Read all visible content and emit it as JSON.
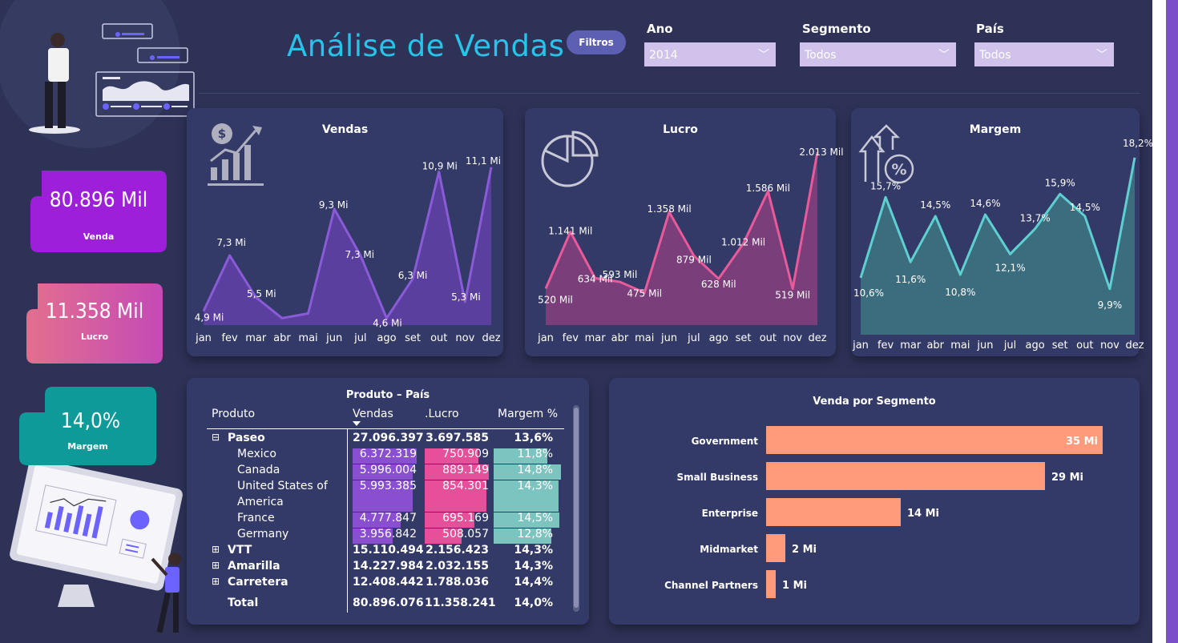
{
  "header": {
    "title": "Análise de Vendas",
    "filters_button": "Filtros"
  },
  "filters": [
    {
      "label": "Ano",
      "value": "2014"
    },
    {
      "label": "Segmento",
      "value": "Todos"
    },
    {
      "label": "País",
      "value": "Todos"
    }
  ],
  "kpis": {
    "venda": {
      "value": "80.896 Mil",
      "label": "Venda"
    },
    "lucro": {
      "value": "11.358 Mil",
      "label": "Lucro"
    },
    "margem": {
      "value": "14,0%",
      "label": "Margem"
    }
  },
  "colors": {
    "background": "#2e3257",
    "card": "#343a68",
    "vendas_line": "#8a5bd6",
    "lucro_line": "#e85a9a",
    "margem_line": "#5ed0d0",
    "bar": "#ff9b7a",
    "title": "#28c3e8"
  },
  "chart_data": [
    {
      "type": "area",
      "title": "Vendas",
      "categories": [
        "jan",
        "fev",
        "mar",
        "abr",
        "mai",
        "jun",
        "jul",
        "ago",
        "set",
        "out",
        "nov",
        "dez"
      ],
      "values": [
        4.9,
        7.3,
        5.5,
        4.6,
        4.8,
        9.3,
        7.3,
        4.6,
        6.3,
        10.9,
        5.3,
        11.1
      ],
      "labels": [
        "4,9 Mi",
        "7,3 Mi",
        "5,5 Mi",
        "",
        "",
        "9,3 Mi",
        "7,3 Mi",
        "4,6 Mi",
        "6,3 Mi",
        "10,9 Mi",
        "5,3 Mi",
        "11,1 Mi"
      ],
      "ylim": [
        4.3,
        11.3
      ]
    },
    {
      "type": "area",
      "title": "Lucro",
      "categories": [
        "jan",
        "fev",
        "mar",
        "abr",
        "mai",
        "jun",
        "jul",
        "ago",
        "set",
        "out",
        "nov",
        "dez"
      ],
      "values": [
        520,
        1141,
        634,
        593,
        475,
        1358,
        879,
        628,
        1012,
        1586,
        519,
        2013
      ],
      "labels": [
        "520 Mil",
        "1.141 Mil",
        "634 Mil",
        "593 Mil",
        "475 Mil",
        "1.358 Mil",
        "879 Mil",
        "628 Mil",
        "1.012 Mil",
        "1.586 Mil",
        "519 Mil",
        "2.013 Mil"
      ],
      "ylim": [
        120,
        2040
      ]
    },
    {
      "type": "area",
      "title": "Margem",
      "categories": [
        "jan",
        "fev",
        "mar",
        "abr",
        "mai",
        "jun",
        "jul",
        "ago",
        "set",
        "out",
        "nov",
        "dez"
      ],
      "values": [
        10.6,
        15.7,
        11.6,
        14.5,
        10.8,
        14.6,
        12.1,
        13.7,
        15.9,
        14.5,
        9.9,
        18.2
      ],
      "labels": [
        "10,6%",
        "15,7%",
        "11,6%",
        "14,5%",
        "10,8%",
        "14,6%",
        "12,1%",
        "13,7%",
        "15,9%",
        "14,5%",
        "9,9%",
        "18,2%"
      ],
      "ylim": [
        7.0,
        18.6
      ]
    },
    {
      "type": "bar",
      "title": "Venda por Segmento",
      "categories": [
        "Government",
        "Small Business",
        "Enterprise",
        "Midmarket",
        "Channel Partners"
      ],
      "values": [
        35,
        29,
        14,
        2,
        1
      ],
      "labels": [
        "35 Mi",
        "29 Mi",
        "14 Mi",
        "2 Mi",
        "1 Mi"
      ],
      "xlim": [
        0,
        35
      ]
    }
  ],
  "matrix": {
    "title": "Produto  – País",
    "headers": [
      "Produto",
      "Vendas",
      ".Lucro",
      "Margem %"
    ],
    "rows": [
      {
        "name": "Paseo",
        "level": 0,
        "expand": "⊟",
        "vendas": "27.096.397",
        "lucro": "3.697.585",
        "margem": "13,6%"
      },
      {
        "name": "Mexico",
        "level": 1,
        "vendas": "6.372.319",
        "lucro": "750.909",
        "margem": "11,8%",
        "vendas_frac": 1.0,
        "lucro_frac": 0.84,
        "margem_frac": 0.8
      },
      {
        "name": "Canada",
        "level": 1,
        "vendas": "5.996.004",
        "lucro": "889.149",
        "margem": "14,8%",
        "vendas_frac": 0.94,
        "lucro_frac": 1.0,
        "margem_frac": 1.0
      },
      {
        "name": "United States of",
        "name2": "America",
        "level": 1,
        "vendas": "5.993.385",
        "lucro": "854.301",
        "margem": "14,3%",
        "vendas_frac": 0.94,
        "lucro_frac": 0.96,
        "margem_frac": 0.97
      },
      {
        "name": "France",
        "level": 1,
        "vendas": "4.777.847",
        "lucro": "695.169",
        "margem": "14,5%",
        "vendas_frac": 0.75,
        "lucro_frac": 0.78,
        "margem_frac": 0.98
      },
      {
        "name": "Germany",
        "level": 1,
        "vendas": "3.956.842",
        "lucro": "508.057",
        "margem": "12,8%",
        "vendas_frac": 0.62,
        "lucro_frac": 0.57,
        "margem_frac": 0.86
      },
      {
        "name": "VTT",
        "level": 0,
        "expand": "⊞",
        "vendas": "15.110.494",
        "lucro": "2.156.423",
        "margem": "14,3%"
      },
      {
        "name": "Amarilla",
        "level": 0,
        "expand": "⊞",
        "vendas": "14.227.984",
        "lucro": "2.032.155",
        "margem": "14,3%"
      },
      {
        "name": "Carretera",
        "level": 0,
        "expand": "⊞",
        "vendas": "12.408.442",
        "lucro": "1.788.036",
        "margem": "14,4%"
      }
    ],
    "total": {
      "name": "Total",
      "vendas": "80.896.076",
      "lucro": "11.358.241",
      "margem": "14,0%"
    }
  }
}
